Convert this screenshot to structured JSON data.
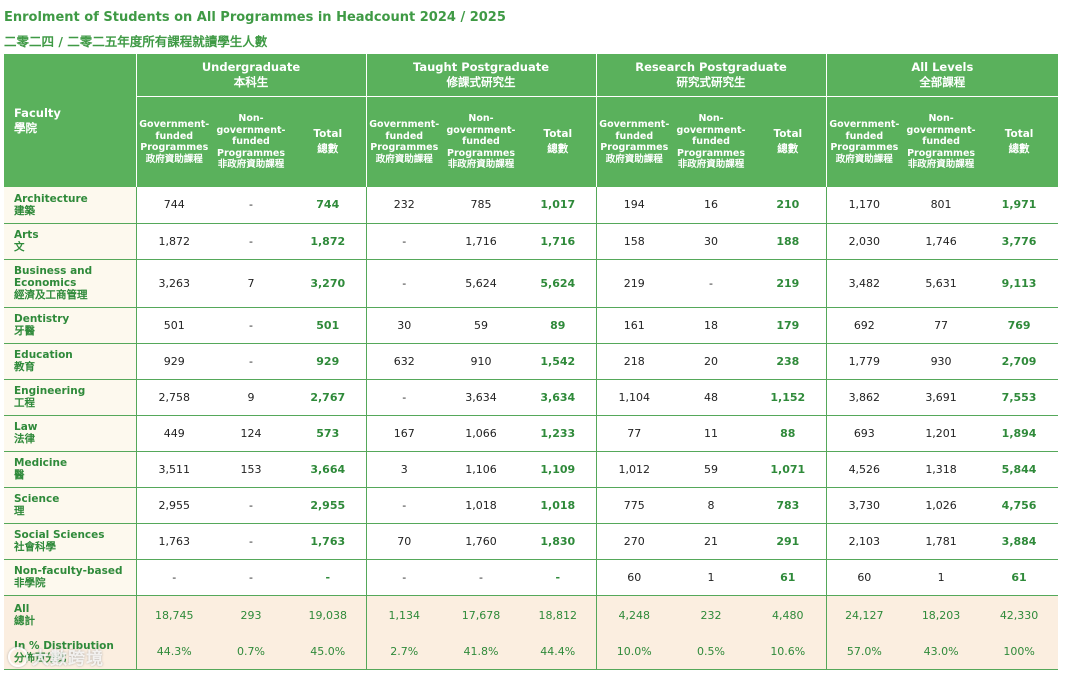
{
  "title_en": "Enrolment of Students on All Programmes in Headcount 2024 / 2025",
  "title_zh": "二零二四 / 二零二五年度所有課程就讀學生人數",
  "faculty_header": {
    "en": "Faculty",
    "zh": "學院"
  },
  "groups": [
    {
      "en": "Undergraduate",
      "zh": "本科生"
    },
    {
      "en": "Taught Postgraduate",
      "zh": "修課式研究生"
    },
    {
      "en": "Research Postgraduate",
      "zh": "研究式研究生"
    },
    {
      "en": "All Levels",
      "zh": "全部課程"
    }
  ],
  "sub_headers": {
    "gov": {
      "en": "Government-funded Programmes",
      "zh": "政府資助課程"
    },
    "nongov": {
      "en": "Non-government-funded Programmes",
      "zh": "非政府資助課程"
    },
    "total": {
      "en": "Total",
      "zh": "總數"
    }
  },
  "rows": [
    {
      "en": "Architecture",
      "zh": "建築",
      "values": [
        "744",
        "-",
        "744",
        "232",
        "785",
        "1,017",
        "194",
        "16",
        "210",
        "1,170",
        "801",
        "1,971"
      ]
    },
    {
      "en": "Arts",
      "zh": "文",
      "values": [
        "1,872",
        "-",
        "1,872",
        "-",
        "1,716",
        "1,716",
        "158",
        "30",
        "188",
        "2,030",
        "1,746",
        "3,776"
      ]
    },
    {
      "en": "Business and Economics",
      "zh": "經濟及工商管理",
      "values": [
        "3,263",
        "7",
        "3,270",
        "-",
        "5,624",
        "5,624",
        "219",
        "-",
        "219",
        "3,482",
        "5,631",
        "9,113"
      ]
    },
    {
      "en": "Dentistry",
      "zh": "牙醫",
      "values": [
        "501",
        "-",
        "501",
        "30",
        "59",
        "89",
        "161",
        "18",
        "179",
        "692",
        "77",
        "769"
      ]
    },
    {
      "en": "Education",
      "zh": "教育",
      "values": [
        "929",
        "-",
        "929",
        "632",
        "910",
        "1,542",
        "218",
        "20",
        "238",
        "1,779",
        "930",
        "2,709"
      ]
    },
    {
      "en": "Engineering",
      "zh": "工程",
      "values": [
        "2,758",
        "9",
        "2,767",
        "-",
        "3,634",
        "3,634",
        "1,104",
        "48",
        "1,152",
        "3,862",
        "3,691",
        "7,553"
      ]
    },
    {
      "en": "Law",
      "zh": "法律",
      "values": [
        "449",
        "124",
        "573",
        "167",
        "1,066",
        "1,233",
        "77",
        "11",
        "88",
        "693",
        "1,201",
        "1,894"
      ]
    },
    {
      "en": "Medicine",
      "zh": "醫",
      "values": [
        "3,511",
        "153",
        "3,664",
        "3",
        "1,106",
        "1,109",
        "1,012",
        "59",
        "1,071",
        "4,526",
        "1,318",
        "5,844"
      ]
    },
    {
      "en": "Science",
      "zh": "理",
      "values": [
        "2,955",
        "-",
        "2,955",
        "-",
        "1,018",
        "1,018",
        "775",
        "8",
        "783",
        "3,730",
        "1,026",
        "4,756"
      ]
    },
    {
      "en": "Social Sciences",
      "zh": "社會科學",
      "values": [
        "1,763",
        "-",
        "1,763",
        "70",
        "1,760",
        "1,830",
        "270",
        "21",
        "291",
        "2,103",
        "1,781",
        "3,884"
      ]
    },
    {
      "en": "Non-faculty-based",
      "zh": "非學院",
      "values": [
        "-",
        "-",
        "-",
        "-",
        "-",
        "-",
        "60",
        "1",
        "61",
        "60",
        "1",
        "61"
      ]
    }
  ],
  "all_row": {
    "en": "All",
    "zh": "總計",
    "values": [
      "18,745",
      "293",
      "19,038",
      "1,134",
      "17,678",
      "18,812",
      "4,248",
      "232",
      "4,480",
      "24,127",
      "18,203",
      "42,330"
    ]
  },
  "pct_row": {
    "en": "In % Distribution",
    "zh": "分佈百分比",
    "values": [
      "44.3%",
      "0.7%",
      "45.0%",
      "2.7%",
      "41.8%",
      "44.4%",
      "10.0%",
      "0.5%",
      "10.6%",
      "57.0%",
      "43.0%",
      "100%"
    ]
  },
  "watermark": "大數跨境",
  "colors": {
    "header_green": "#5ab15c",
    "text_green": "#2f8a3a",
    "row_cream": "#fdf9ee",
    "summary_peach": "#fbeee0"
  }
}
